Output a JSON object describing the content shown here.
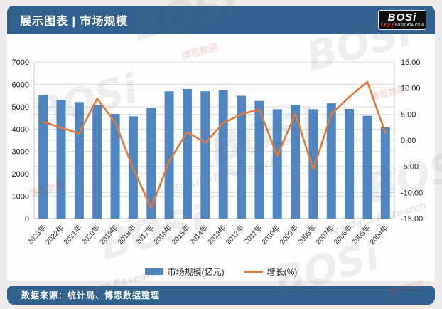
{
  "header": {
    "title": "展示图表 | 市场规模"
  },
  "logo": {
    "name": "BOSi",
    "site": "BOSIDATA.COM"
  },
  "footer": {
    "source": "数据来源：统计局、博思数据整理"
  },
  "watermark": {
    "brand": "BOSi",
    "script": "BosiData Research",
    "cn": "博思数据"
  },
  "chart_data": {
    "type": "bar+line",
    "title": "市场规模",
    "categories": [
      "2023年",
      "2022年",
      "2021年",
      "2020年",
      "2019年",
      "2018年",
      "2017年",
      "2016年",
      "2015年",
      "2014年",
      "2013年",
      "2012年",
      "2011年",
      "2010年",
      "2009年",
      "2008年",
      "2007年",
      "2006年",
      "2005年",
      "2004年"
    ],
    "series": [
      {
        "name": "市场规模(亿元)",
        "type": "bar",
        "axis": "left",
        "color": "#4f86c2",
        "values": [
          5530,
          5310,
          5210,
          5080,
          4680,
          4570,
          4940,
          5690,
          5790,
          5690,
          5740,
          5490,
          5260,
          4890,
          5080,
          4890,
          5150,
          4900,
          4590,
          4080
        ]
      },
      {
        "name": "增长(%)",
        "type": "line",
        "axis": "right",
        "color": "#e2793b",
        "values": [
          3.5,
          2.4,
          1.3,
          8.0,
          3.4,
          -5.4,
          -13.0,
          -4.0,
          1.6,
          -0.5,
          3.3,
          5.0,
          5.9,
          -3.0,
          5.1,
          -5.6,
          5.0,
          8.3,
          11.2,
          1.4
        ]
      }
    ],
    "left_axis": {
      "min": 0,
      "max": 7000,
      "step": 1000,
      "tick_labels": [
        "7000",
        "6000",
        "5000",
        "4000",
        "3000",
        "2000",
        "1000",
        "0"
      ]
    },
    "right_axis": {
      "min": -15,
      "max": 15,
      "step": 5,
      "tick_labels": [
        "15.00",
        "10.00",
        "5.00",
        "0.00",
        "-5.00",
        "-10.00",
        "-15.00"
      ]
    },
    "grid": true,
    "legend_position": "bottom"
  }
}
